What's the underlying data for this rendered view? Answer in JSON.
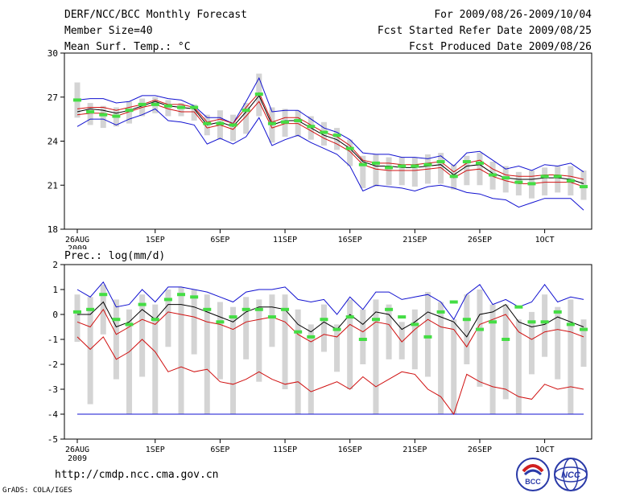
{
  "header": {
    "title": "DERF/NCC/BCC Monthly Forecast",
    "member": "Member Size=40",
    "variable": "Mean Surf. Temp.: °C",
    "period": "For 2009/08/26-2009/10/04",
    "started": "Fcst Started Refer Date 2009/08/25",
    "produced": "Fcst Produced Date 2009/08/26"
  },
  "footer": {
    "url": "http://cmdp.ncc.cma.gov.cn",
    "credit": "GrADS: COLA/IGES",
    "logo_bcc_text": "BCC",
    "logo_ncc_text": "NCC"
  },
  "colors": {
    "box": "#d4d4d4",
    "envelope": "#1010d0",
    "inner": "#d01010",
    "median": "#000000",
    "marker": "#44dd44"
  },
  "chart_data": [
    {
      "type": "line",
      "title": "Mean Surf. Temp.: °C",
      "ylim": [
        18,
        30
      ],
      "yticks": [
        18,
        21,
        24,
        27,
        30
      ],
      "xticks": [
        {
          "day": 0,
          "label": "26AUG"
        },
        {
          "day": 6,
          "label": "1SEP"
        },
        {
          "day": 11,
          "label": "6SEP"
        },
        {
          "day": 16,
          "label": "11SEP"
        },
        {
          "day": 21,
          "label": "16SEP"
        },
        {
          "day": 26,
          "label": "21SEP"
        },
        {
          "day": 31,
          "label": "26SEP"
        },
        {
          "day": 36,
          "label": "1OCT"
        }
      ],
      "xtick_sublabel": "2009",
      "days": 40,
      "series": {
        "max": [
          25.1,
          25.6,
          25.6,
          25.2,
          25.4,
          25.8,
          26.3,
          26.6,
          26.8,
          26.7,
          25.5,
          25.7,
          25.4,
          26.2,
          27.5,
          25.0,
          25.5,
          25.7,
          25.3,
          24.7,
          24.4,
          23.8,
          22.8,
          22.7,
          22.7,
          22.5,
          22.1,
          22.2,
          22.5,
          21.6,
          22.4,
          22.5,
          21.9,
          21.5,
          21.2,
          21.2,
          21.2,
          21.1,
          21.0,
          20.8
        ],
        "p75": [
          26.2,
          26.3,
          26.3,
          26.1,
          26.3,
          26.5,
          26.8,
          26.5,
          26.5,
          26.3,
          25.3,
          25.5,
          25.2,
          26.3,
          27.3,
          25.3,
          25.6,
          25.6,
          25.1,
          24.6,
          24.3,
          23.7,
          22.7,
          22.5,
          22.5,
          22.4,
          22.4,
          22.5,
          22.6,
          21.9,
          22.5,
          22.7,
          22.1,
          21.7,
          21.6,
          21.6,
          21.7,
          21.7,
          21.6,
          21.4
        ],
        "median": [
          26.0,
          26.2,
          26.1,
          25.9,
          26.1,
          26.4,
          26.7,
          26.4,
          26.3,
          26.2,
          25.1,
          25.3,
          25.0,
          26.0,
          27.1,
          25.1,
          25.4,
          25.4,
          24.9,
          24.4,
          24.1,
          23.5,
          22.6,
          22.3,
          22.3,
          22.2,
          22.2,
          22.3,
          22.4,
          21.7,
          22.3,
          22.4,
          21.8,
          21.5,
          21.4,
          21.4,
          21.5,
          21.5,
          21.4,
          21.1
        ],
        "p25": [
          25.8,
          25.9,
          25.9,
          25.7,
          26.0,
          26.3,
          26.5,
          26.2,
          26.0,
          26.0,
          24.9,
          25.1,
          24.8,
          25.7,
          26.7,
          24.9,
          25.2,
          25.2,
          24.7,
          24.2,
          23.8,
          23.3,
          22.4,
          22.1,
          22.0,
          22.0,
          22.0,
          22.1,
          22.2,
          21.5,
          22.0,
          22.1,
          21.6,
          21.3,
          21.1,
          21.1,
          21.2,
          21.2,
          21.2,
          20.9
        ],
        "min": [
          25.0,
          25.5,
          25.5,
          25.0,
          25.3,
          25.7,
          26.2,
          26.4,
          26.6,
          26.6,
          25.4,
          25.6,
          25.3,
          26.1,
          27.0,
          25.0,
          25.4,
          25.6,
          25.2,
          24.6,
          24.3,
          23.7,
          22.6,
          22.7,
          22.5,
          22.4,
          22.0,
          22.1,
          22.4,
          21.5,
          22.2,
          22.4,
          21.8,
          21.4,
          21.1,
          21.1,
          21.2,
          21.0,
          20.9,
          20.6
        ],
        "env_upper": [
          26.8,
          26.9,
          26.9,
          26.6,
          26.7,
          27.1,
          27.1,
          26.9,
          26.8,
          26.4,
          25.6,
          25.6,
          25.2,
          26.7,
          28.3,
          26.0,
          26.1,
          26.1,
          25.5,
          24.9,
          24.6,
          24.1,
          23.2,
          23.1,
          23.1,
          22.9,
          22.9,
          22.8,
          23.0,
          22.3,
          23.2,
          23.3,
          22.7,
          22.1,
          22.3,
          22.0,
          22.4,
          22.3,
          22.5,
          21.9
        ],
        "env_lower": [
          25.0,
          25.5,
          25.5,
          25.1,
          25.5,
          25.8,
          26.2,
          25.4,
          25.3,
          25.1,
          23.8,
          24.2,
          23.8,
          24.3,
          25.6,
          23.7,
          24.1,
          24.4,
          23.9,
          23.5,
          23.1,
          22.3,
          20.6,
          21.0,
          20.9,
          20.8,
          20.6,
          20.9,
          21.0,
          20.8,
          20.5,
          20.4,
          20.1,
          20.0,
          19.5,
          19.8,
          20.1,
          20.1,
          20.1,
          19.3
        ],
        "inner_upper": [
          26.2,
          26.3,
          26.3,
          26.1,
          26.3,
          26.5,
          26.8,
          26.5,
          26.5,
          26.3,
          25.3,
          25.5,
          25.2,
          26.3,
          27.3,
          25.3,
          25.6,
          25.6,
          25.1,
          24.6,
          24.3,
          23.7,
          22.7,
          22.5,
          22.5,
          22.4,
          22.4,
          22.5,
          22.6,
          21.9,
          22.5,
          22.7,
          22.1,
          21.7,
          21.6,
          21.6,
          21.7,
          21.7,
          21.6,
          21.4
        ],
        "inner_lower": [
          25.8,
          25.9,
          25.9,
          25.7,
          26.0,
          26.3,
          26.5,
          26.2,
          26.0,
          26.0,
          24.9,
          25.1,
          24.8,
          25.7,
          26.7,
          24.9,
          25.2,
          25.2,
          24.7,
          24.2,
          23.8,
          23.3,
          22.4,
          22.1,
          22.0,
          22.0,
          22.0,
          22.1,
          22.2,
          21.5,
          22.0,
          22.1,
          21.6,
          21.3,
          21.1,
          21.1,
          21.2,
          21.2,
          21.2,
          20.9
        ],
        "box_top": [
          28.0,
          26.6,
          26.4,
          26.3,
          26.7,
          26.9,
          27.0,
          26.8,
          26.6,
          26.5,
          25.8,
          26.1,
          25.8,
          26.6,
          28.6,
          26.3,
          26.2,
          26.1,
          25.7,
          25.3,
          24.9,
          24.1,
          23.0,
          23.1,
          22.9,
          22.9,
          22.9,
          23.1,
          23.2,
          22.4,
          23.0,
          23.2,
          22.6,
          22.3,
          21.9,
          22.0,
          22.2,
          22.3,
          22.3,
          22.0
        ],
        "box_bottom": [
          25.6,
          25.1,
          24.9,
          25.0,
          25.2,
          25.7,
          25.9,
          25.7,
          25.7,
          25.4,
          24.4,
          24.1,
          24.0,
          24.5,
          25.7,
          23.9,
          24.3,
          24.3,
          24.1,
          23.7,
          23.4,
          22.3,
          20.8,
          20.9,
          21.0,
          21.0,
          20.9,
          21.1,
          21.1,
          20.7,
          21.0,
          21.0,
          20.7,
          20.5,
          20.3,
          20.1,
          20.3,
          20.5,
          20.3,
          20.0
        ],
        "marker": [
          26.8,
          26.0,
          25.8,
          25.7,
          26.1,
          26.5,
          26.5,
          26.4,
          26.3,
          26.3,
          25.2,
          25.2,
          25.1,
          26.1,
          27.2,
          25.2,
          25.3,
          25.4,
          25.0,
          24.6,
          24.4,
          23.5,
          22.4,
          22.5,
          22.2,
          22.3,
          22.3,
          22.4,
          22.6,
          21.6,
          22.6,
          22.5,
          21.7,
          21.5,
          21.2,
          21.1,
          21.6,
          21.6,
          21.3,
          20.9
        ]
      }
    },
    {
      "type": "line",
      "title": "Prec.: log(mm/d)",
      "ylim": [
        -5,
        2
      ],
      "yticks": [
        -5,
        -4,
        -3,
        -2,
        -1,
        0,
        1,
        2
      ],
      "xticks": [
        {
          "day": 0,
          "label": "26AUG"
        },
        {
          "day": 6,
          "label": "1SEP"
        },
        {
          "day": 11,
          "label": "6SEP"
        },
        {
          "day": 16,
          "label": "11SEP"
        },
        {
          "day": 21,
          "label": "16SEP"
        },
        {
          "day": 26,
          "label": "21SEP"
        },
        {
          "day": 31,
          "label": "26SEP"
        },
        {
          "day": 36,
          "label": "1OCT"
        }
      ],
      "xtick_sublabel": "2009",
      "days": 40,
      "series": {
        "env_upper": [
          1.0,
          0.7,
          1.3,
          0.3,
          0.4,
          1.0,
          0.5,
          1.1,
          1.1,
          1.0,
          0.9,
          0.7,
          0.5,
          0.9,
          1.0,
          1.0,
          1.1,
          0.6,
          0.5,
          0.6,
          0.0,
          0.7,
          0.2,
          0.9,
          0.9,
          0.6,
          0.7,
          0.8,
          0.5,
          -0.2,
          0.8,
          1.2,
          0.4,
          0.6,
          0.3,
          0.5,
          1.2,
          0.5,
          0.7,
          0.6
        ],
        "median": [
          0.0,
          0.0,
          0.5,
          -0.5,
          -0.3,
          0.2,
          -0.2,
          0.4,
          0.4,
          0.3,
          0.1,
          -0.1,
          -0.3,
          0.1,
          0.3,
          0.3,
          0.2,
          -0.4,
          -0.7,
          -0.3,
          -0.6,
          0.0,
          -0.4,
          0.1,
          0.0,
          -0.6,
          -0.3,
          0.1,
          -0.1,
          -0.3,
          -0.9,
          0.0,
          0.1,
          0.4,
          -0.3,
          -0.5,
          -0.4,
          -0.1,
          -0.3,
          -0.5
        ],
        "inner_upper": [
          -0.3,
          -0.5,
          0.2,
          -0.8,
          -0.5,
          -0.2,
          -0.4,
          0.1,
          0.0,
          -0.1,
          -0.3,
          -0.4,
          -0.6,
          -0.3,
          -0.2,
          -0.1,
          -0.3,
          -0.8,
          -1.1,
          -0.8,
          -0.9,
          -0.4,
          -0.7,
          -0.3,
          -0.4,
          -1.1,
          -0.6,
          -0.2,
          -0.5,
          -0.6,
          -1.3,
          -0.4,
          -0.2,
          0.0,
          -0.7,
          -1.0,
          -0.7,
          -0.6,
          -0.7,
          -0.9
        ],
        "inner_lower": [
          -0.9,
          -1.4,
          -0.9,
          -1.8,
          -1.5,
          -1.0,
          -1.5,
          -2.3,
          -2.1,
          -2.3,
          -2.2,
          -2.7,
          -2.8,
          -2.6,
          -2.3,
          -2.6,
          -2.8,
          -2.7,
          -3.1,
          -2.9,
          -2.7,
          -3.0,
          -2.5,
          -2.9,
          -2.6,
          -2.3,
          -2.4,
          -3.0,
          -3.3,
          -4.0,
          -2.4,
          -2.7,
          -2.9,
          -3.0,
          -3.3,
          -3.4,
          -2.8,
          -3.0,
          -2.9,
          -3.0
        ],
        "env_lower": [
          -4.0,
          -4.0,
          -4.0,
          -4.0,
          -4.0,
          -4.0,
          -4.0,
          -4.0,
          -4.0,
          -4.0,
          -4.0,
          -4.0,
          -4.0,
          -4.0,
          -4.0,
          -4.0,
          -4.0,
          -4.0,
          -4.0,
          -4.0,
          -4.0,
          -4.0,
          -4.0,
          -4.0,
          -4.0,
          -4.0,
          -4.0,
          -4.0,
          -4.0,
          -4.0,
          -4.0,
          -4.0,
          -4.0,
          -4.0,
          -4.0,
          -4.0,
          -4.0,
          -4.0,
          -4.0,
          -4.0
        ],
        "box_top": [
          0.8,
          0.7,
          1.2,
          0.6,
          0.2,
          0.8,
          0.4,
          1.0,
          1.1,
          1.0,
          0.8,
          0.5,
          0.3,
          0.7,
          0.6,
          0.8,
          0.8,
          0.2,
          -0.4,
          0.4,
          -0.4,
          0.6,
          0.2,
          0.6,
          0.4,
          -0.3,
          0.2,
          0.9,
          0.5,
          -0.2,
          0.8,
          1.0,
          0.4,
          0.4,
          -0.2,
          0.1,
          0.8,
          0.3,
          0.6,
          -0.2
        ],
        "box_bottom": [
          -1.1,
          -3.6,
          -0.8,
          -2.6,
          -4.0,
          -2.5,
          -4.0,
          -1.3,
          -4.0,
          -1.6,
          -4.0,
          -2.6,
          -4.0,
          -1.8,
          -2.7,
          -1.3,
          -3.0,
          -4.0,
          -4.0,
          -1.5,
          -2.3,
          -3.0,
          -2.0,
          -4.0,
          -1.8,
          -1.8,
          -2.2,
          -2.5,
          -4.0,
          -4.0,
          -2.0,
          -2.9,
          -4.0,
          -3.4,
          -4.0,
          -2.4,
          -1.7,
          -2.6,
          -4.0,
          -2.1
        ],
        "marker": [
          0.1,
          0.2,
          0.8,
          -0.2,
          -0.4,
          0.4,
          -0.2,
          0.6,
          0.8,
          0.7,
          0.2,
          -0.3,
          -0.1,
          0.2,
          0.2,
          -0.1,
          0.2,
          -0.7,
          -0.9,
          -0.2,
          -0.6,
          -0.1,
          -1.0,
          -0.2,
          0.2,
          -0.1,
          -0.4,
          -0.9,
          0.1,
          0.5,
          -0.2,
          -0.6,
          -0.3,
          -1.0,
          0.3,
          -0.3,
          -0.3,
          0.1,
          -0.4,
          -0.6
        ]
      }
    }
  ]
}
